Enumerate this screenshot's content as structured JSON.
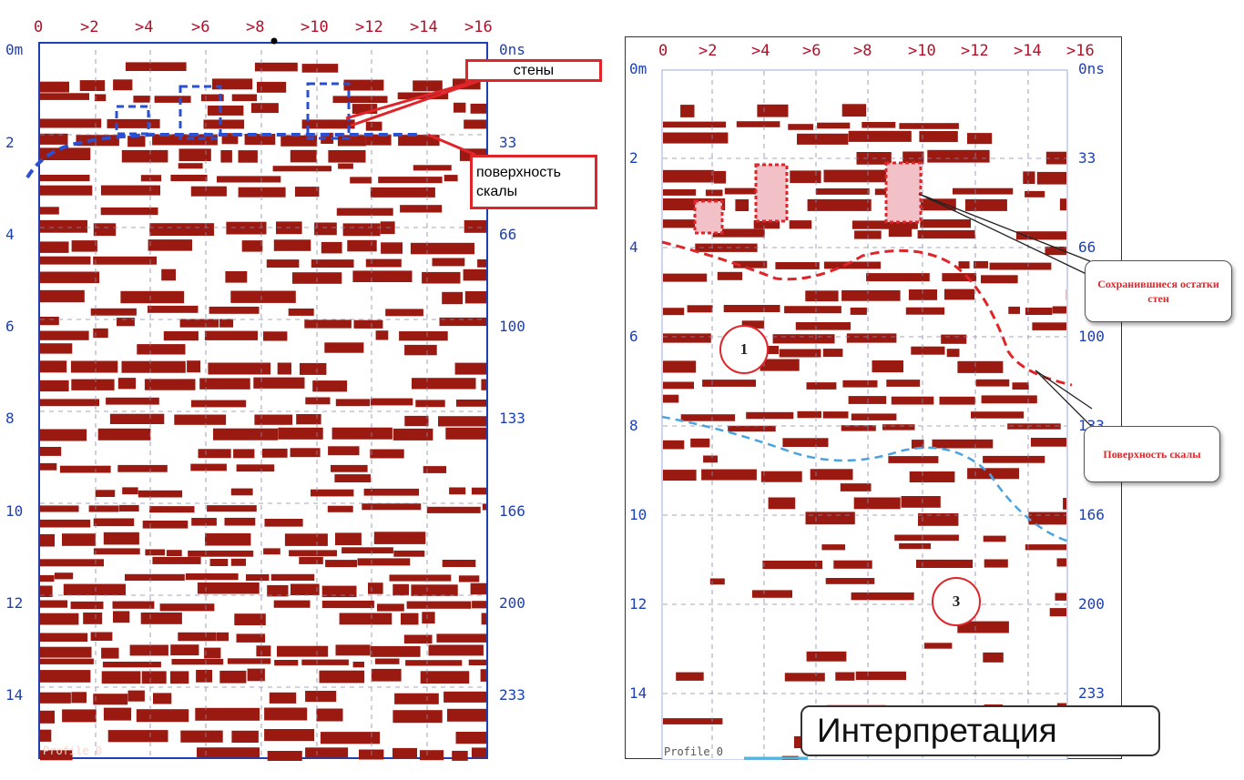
{
  "left_panel": {
    "x_ticks": [
      "0",
      ">2",
      ">4",
      ">6",
      ">8",
      ">10",
      ">12",
      ">14",
      ">16"
    ],
    "depth_ticks": [
      "0m",
      "2",
      "4",
      "6",
      "8",
      "10",
      "12",
      "14"
    ],
    "time_ticks": [
      "0ns",
      "33",
      "66",
      "100",
      "133",
      "166",
      "200",
      "233"
    ],
    "callout_walls": "стены",
    "callout_rock_surface": "поверхность скалы",
    "footer_label": "Profile 0"
  },
  "right_panel": {
    "x_ticks": [
      "0",
      ">2",
      ">4",
      ">6",
      ">8",
      ">10",
      ">12",
      ">14",
      ">16"
    ],
    "depth_ticks": [
      "0m",
      "2",
      "4",
      "6",
      "8",
      "10",
      "12",
      "14"
    ],
    "time_ticks": [
      "0ns",
      "33",
      "66",
      "100",
      "133",
      "166",
      "200",
      "233"
    ],
    "callout_wall_remains": "Сохранившиеся остатки стен",
    "callout_rock_surface": "Поверхность скалы",
    "zone_labels": [
      "1",
      "3"
    ],
    "footer_label": "Profile 0"
  },
  "interpretation_label": "Интерпретация",
  "colors": {
    "reflection": "#9a1a12",
    "axis": "#1d3fb4",
    "tick_top": "#b0102a",
    "callout": "#e0252a",
    "interface": "#2a6fd6"
  }
}
